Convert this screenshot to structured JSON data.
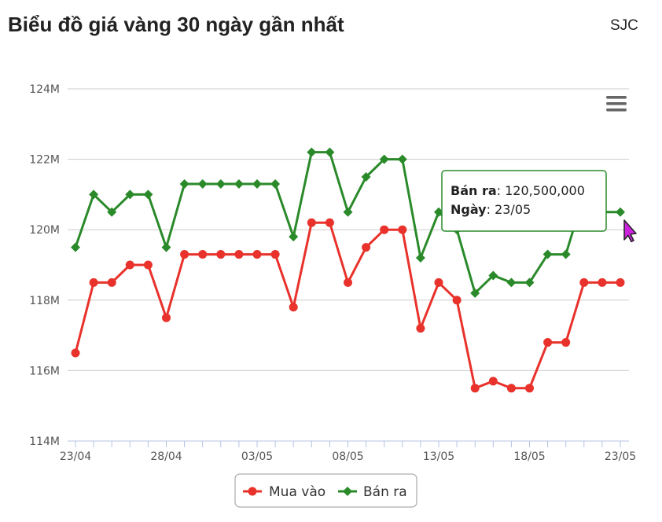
{
  "header": {
    "title": "Biểu đồ giá vàng 30 ngày gần nhất",
    "brand": "SJC"
  },
  "tooltip": {
    "series_label": "Bán ra",
    "value_text": "120,500,000",
    "date_label": "Ngày",
    "date_value": "23/05"
  },
  "colors": {
    "buy": "#e8322b",
    "sell": "#2a8a2a",
    "grid": "#cccccc",
    "tooltip_border": "#2a8a2a"
  },
  "icons": {
    "menu": "hamburger-menu-icon",
    "cursor": "mouse-pointer-icon"
  },
  "chart_data": {
    "type": "line",
    "title": "Biểu đồ giá vàng 30 ngày gần nhất",
    "xlabel": "",
    "ylabel": "",
    "x": [
      "23/04",
      "24/04",
      "25/04",
      "26/04",
      "27/04",
      "28/04",
      "29/04",
      "30/04",
      "01/05",
      "02/05",
      "03/05",
      "04/05",
      "05/05",
      "06/05",
      "07/05",
      "08/05",
      "09/05",
      "10/05",
      "11/05",
      "12/05",
      "13/05",
      "14/05",
      "15/05",
      "16/05",
      "17/05",
      "18/05",
      "19/05",
      "20/05",
      "21/05",
      "22/05",
      "23/05"
    ],
    "x_tick_labels": [
      "23/04",
      "28/04",
      "03/05",
      "08/05",
      "13/05",
      "18/05",
      "23/05"
    ],
    "y_tick_labels": [
      "114M",
      "116M",
      "118M",
      "120M",
      "122M",
      "124M"
    ],
    "y_ticks": [
      114000000,
      116000000,
      118000000,
      120000000,
      122000000,
      124000000
    ],
    "ylim": [
      114000000,
      124000000
    ],
    "grid": true,
    "legend_position": "bottom-center",
    "series": [
      {
        "name": "Mua vào",
        "color": "#e8322b",
        "marker": "circle",
        "values": [
          116500000,
          118500000,
          118500000,
          119000000,
          119000000,
          117500000,
          119300000,
          119300000,
          119300000,
          119300000,
          119300000,
          119300000,
          117800000,
          120200000,
          120200000,
          118500000,
          119500000,
          120000000,
          120000000,
          117200000,
          118500000,
          118000000,
          115500000,
          115700000,
          115500000,
          115500000,
          116800000,
          116800000,
          118500000,
          118500000,
          118500000
        ]
      },
      {
        "name": "Bán ra",
        "color": "#2a8a2a",
        "marker": "diamond",
        "values": [
          119500000,
          121000000,
          120500000,
          121000000,
          121000000,
          119500000,
          121300000,
          121300000,
          121300000,
          121300000,
          121300000,
          121300000,
          119800000,
          122200000,
          122200000,
          120500000,
          121500000,
          122000000,
          122000000,
          119200000,
          120500000,
          120000000,
          118200000,
          118700000,
          118500000,
          118500000,
          119300000,
          119300000,
          121000000,
          120500000,
          120500000
        ]
      }
    ]
  }
}
